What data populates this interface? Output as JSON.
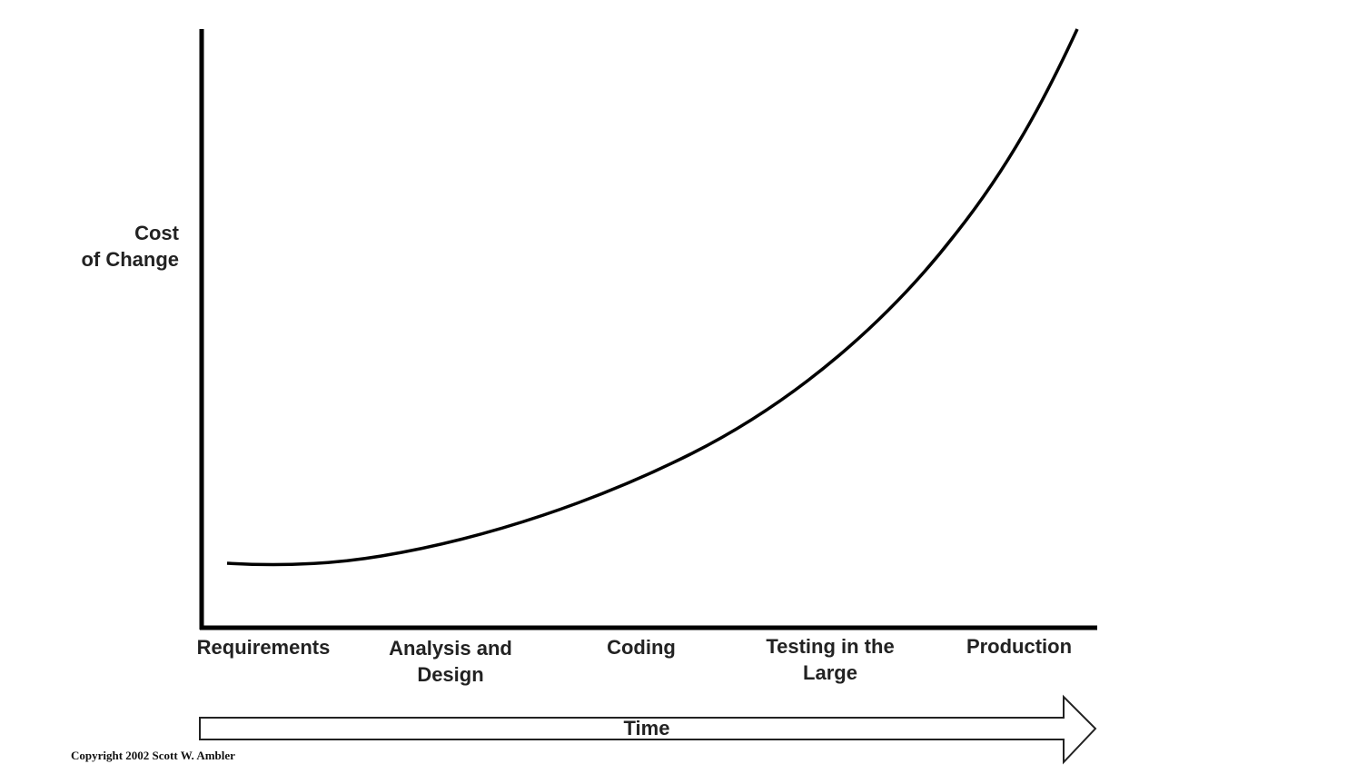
{
  "y_axis_label": [
    "Cost",
    "of Change"
  ],
  "x_labels": [
    [
      "Requirements"
    ],
    [
      "Analysis and",
      "Design"
    ],
    [
      "Coding"
    ],
    [
      "Testing in the",
      "Large"
    ],
    [
      "Production"
    ]
  ],
  "time_arrow_label": "Time",
  "copyright": "Copyright 2002 Scott W. Ambler",
  "colors": {
    "line": "#000000",
    "background": "#ffffff"
  }
}
